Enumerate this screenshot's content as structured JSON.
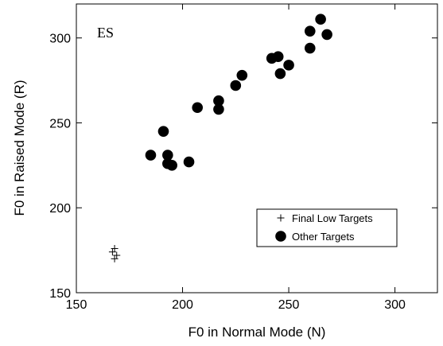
{
  "chart_data": {
    "type": "scatter",
    "title": "",
    "annotation": "ES",
    "xlabel": "F0 in Normal Mode (N)",
    "ylabel": "F0 in Raised Mode (R)",
    "xlim": [
      150,
      320
    ],
    "ylim": [
      150,
      320
    ],
    "xticks": [
      150,
      200,
      250,
      300
    ],
    "yticks": [
      150,
      200,
      250,
      300
    ],
    "grid": false,
    "legend_position": "lower-right",
    "series": [
      {
        "name": "Final Low Targets",
        "marker": "plus",
        "color": "#000000",
        "points": [
          [
            167,
            174
          ],
          [
            168,
            176
          ],
          [
            169,
            172
          ],
          [
            168,
            170
          ]
        ]
      },
      {
        "name": "Other Targets",
        "marker": "filled-circle",
        "color": "#000000",
        "points": [
          [
            185,
            231
          ],
          [
            191,
            245
          ],
          [
            193,
            231
          ],
          [
            193,
            226
          ],
          [
            195,
            225
          ],
          [
            203,
            227
          ],
          [
            207,
            259
          ],
          [
            217,
            263
          ],
          [
            217,
            258
          ],
          [
            225,
            272
          ],
          [
            228,
            278
          ],
          [
            242,
            288
          ],
          [
            245,
            289
          ],
          [
            246,
            279
          ],
          [
            250,
            284
          ],
          [
            260,
            304
          ],
          [
            260,
            294
          ],
          [
            265,
            311
          ],
          [
            268,
            302
          ]
        ]
      }
    ]
  }
}
